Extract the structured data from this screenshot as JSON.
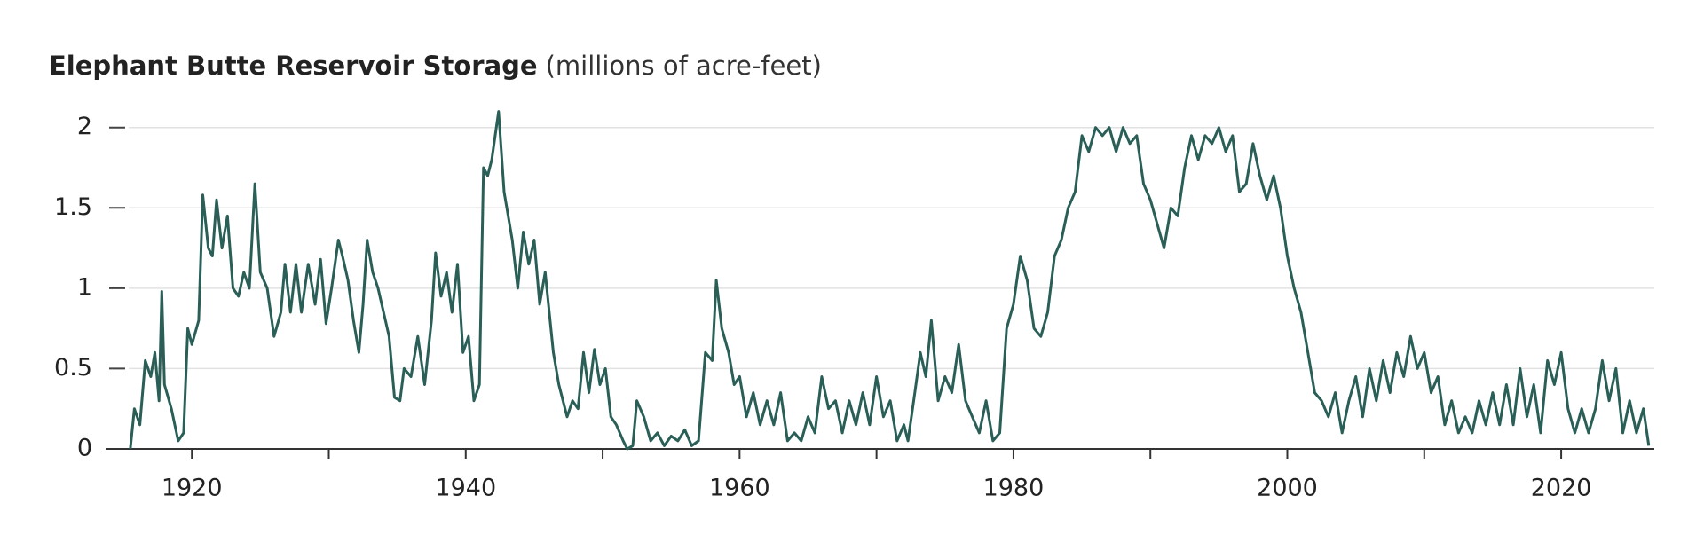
{
  "chart_data": {
    "type": "line",
    "title": "Elephant Butte Reservoir Storage",
    "subtitle": "(millions of acre-feet)",
    "xlim": [
      1913.7,
      2026.8
    ],
    "xticks": [
      1920,
      1940,
      1960,
      1980,
      2000,
      2020
    ],
    "minor_xticks": [
      1930,
      1950,
      1970,
      1990,
      2010
    ],
    "ylim": [
      0,
      2.12
    ],
    "yticks": [
      0,
      0.5,
      1,
      1.5,
      2
    ],
    "grid": true,
    "series": [
      {
        "color": "#2a5f58",
        "x": [
          1915.5,
          1915.8,
          1916.2,
          1916.6,
          1917.0,
          1917.3,
          1917.6,
          1917.8,
          1918.0,
          1918.5,
          1919.0,
          1919.4,
          1919.7,
          1920.0,
          1920.5,
          1920.8,
          1921.2,
          1921.5,
          1921.8,
          1922.2,
          1922.6,
          1923.0,
          1923.4,
          1923.8,
          1924.2,
          1924.6,
          1925.0,
          1925.5,
          1926.0,
          1926.5,
          1926.8,
          1927.2,
          1927.6,
          1928.0,
          1928.5,
          1929.0,
          1929.4,
          1929.8,
          1930.2,
          1930.7,
          1931.0,
          1931.4,
          1931.8,
          1932.2,
          1932.5,
          1932.8,
          1933.2,
          1933.6,
          1934.0,
          1934.4,
          1934.8,
          1935.2,
          1935.5,
          1936.0,
          1936.5,
          1937.0,
          1937.5,
          1937.8,
          1938.2,
          1938.6,
          1939.0,
          1939.4,
          1939.8,
          1940.2,
          1940.6,
          1941.0,
          1941.3,
          1941.6,
          1941.9,
          1942.4,
          1942.8,
          1943.4,
          1943.8,
          1944.2,
          1944.6,
          1945.0,
          1945.4,
          1945.8,
          1946.4,
          1946.8,
          1947.4,
          1947.8,
          1948.2,
          1948.6,
          1949.0,
          1949.4,
          1949.8,
          1950.2,
          1950.6,
          1951.0,
          1951.5,
          1951.8,
          1952.2,
          1952.5,
          1953.0,
          1953.5,
          1954.0,
          1954.5,
          1955.0,
          1955.5,
          1956.0,
          1956.5,
          1957.0,
          1957.5,
          1958.0,
          1958.3,
          1958.7,
          1959.2,
          1959.6,
          1960.0,
          1960.5,
          1961.0,
          1961.5,
          1962.0,
          1962.5,
          1963.0,
          1963.5,
          1964.0,
          1964.5,
          1965.0,
          1965.5,
          1966.0,
          1966.5,
          1967.0,
          1967.5,
          1968.0,
          1968.5,
          1969.0,
          1969.5,
          1970.0,
          1970.5,
          1971.0,
          1971.5,
          1972.0,
          1972.3,
          1972.8,
          1973.2,
          1973.6,
          1974.0,
          1974.5,
          1975.0,
          1975.5,
          1976.0,
          1976.5,
          1977.0,
          1977.5,
          1978.0,
          1978.5,
          1979.0,
          1979.5,
          1980.0,
          1980.5,
          1981.0,
          1981.5,
          1982.0,
          1982.5,
          1983.0,
          1983.5,
          1984.0,
          1984.5,
          1985.0,
          1985.5,
          1986.0,
          1986.5,
          1987.0,
          1987.5,
          1988.0,
          1988.5,
          1989.0,
          1989.5,
          1990.0,
          1990.5,
          1991.0,
          1991.5,
          1992.0,
          1992.5,
          1993.0,
          1993.5,
          1994.0,
          1994.5,
          1995.0,
          1995.5,
          1996.0,
          1996.5,
          1997.0,
          1997.5,
          1998.0,
          1998.5,
          1999.0,
          1999.5,
          2000.0,
          2000.5,
          2001.0,
          2001.5,
          2002.0,
          2002.5,
          2003.0,
          2003.5,
          2004.0,
          2004.5,
          2005.0,
          2005.5,
          2006.0,
          2006.5,
          2007.0,
          2007.5,
          2008.0,
          2008.5,
          2009.0,
          2009.5,
          2010.0,
          2010.5,
          2011.0,
          2011.5,
          2012.0,
          2012.5,
          2013.0,
          2013.5,
          2014.0,
          2014.5,
          2015.0,
          2015.5,
          2016.0,
          2016.5,
          2017.0,
          2017.5,
          2018.0,
          2018.5,
          2019.0,
          2019.5,
          2020.0,
          2020.5,
          2021.0,
          2021.5,
          2022.0,
          2022.5,
          2023.0,
          2023.5,
          2024.0,
          2024.5,
          2025.0,
          2025.5,
          2026.0,
          2026.4
        ],
        "values": [
          0,
          0.25,
          0.15,
          0.55,
          0.45,
          0.6,
          0.3,
          0.98,
          0.4,
          0.25,
          0.05,
          0.1,
          0.75,
          0.65,
          0.8,
          1.58,
          1.25,
          1.2,
          1.55,
          1.25,
          1.45,
          1.0,
          0.95,
          1.1,
          1.0,
          1.65,
          1.1,
          1.0,
          0.7,
          0.85,
          1.15,
          0.85,
          1.15,
          0.85,
          1.15,
          0.9,
          1.18,
          0.78,
          1.0,
          1.3,
          1.2,
          1.05,
          0.8,
          0.6,
          0.9,
          1.3,
          1.1,
          1.0,
          0.85,
          0.7,
          0.32,
          0.3,
          0.5,
          0.45,
          0.7,
          0.4,
          0.8,
          1.22,
          0.95,
          1.1,
          0.85,
          1.15,
          0.6,
          0.7,
          0.3,
          0.4,
          1.75,
          1.7,
          1.8,
          2.1,
          1.6,
          1.3,
          1.0,
          1.35,
          1.15,
          1.3,
          0.9,
          1.1,
          0.6,
          0.4,
          0.2,
          0.3,
          0.25,
          0.6,
          0.35,
          0.62,
          0.4,
          0.5,
          0.2,
          0.15,
          0.05,
          0.0,
          0.02,
          0.3,
          0.2,
          0.05,
          0.1,
          0.02,
          0.08,
          0.05,
          0.12,
          0.02,
          0.05,
          0.6,
          0.55,
          1.05,
          0.75,
          0.6,
          0.4,
          0.45,
          0.2,
          0.35,
          0.15,
          0.3,
          0.15,
          0.35,
          0.05,
          0.1,
          0.05,
          0.2,
          0.1,
          0.45,
          0.25,
          0.3,
          0.1,
          0.3,
          0.15,
          0.35,
          0.15,
          0.45,
          0.2,
          0.3,
          0.05,
          0.15,
          0.05,
          0.35,
          0.6,
          0.45,
          0.8,
          0.3,
          0.45,
          0.35,
          0.65,
          0.3,
          0.2,
          0.1,
          0.3,
          0.05,
          0.1,
          0.75,
          0.9,
          1.2,
          1.05,
          0.75,
          0.7,
          0.85,
          1.2,
          1.3,
          1.5,
          1.6,
          1.95,
          1.85,
          2.0,
          1.95,
          2.0,
          1.85,
          2.0,
          1.9,
          1.95,
          1.65,
          1.55,
          1.4,
          1.25,
          1.5,
          1.45,
          1.75,
          1.95,
          1.8,
          1.95,
          1.9,
          2.0,
          1.85,
          1.95,
          1.6,
          1.65,
          1.9,
          1.7,
          1.55,
          1.7,
          1.5,
          1.2,
          1.0,
          0.85,
          0.6,
          0.35,
          0.3,
          0.2,
          0.35,
          0.1,
          0.3,
          0.45,
          0.2,
          0.5,
          0.3,
          0.55,
          0.35,
          0.6,
          0.45,
          0.7,
          0.5,
          0.6,
          0.35,
          0.45,
          0.15,
          0.3,
          0.1,
          0.2,
          0.1,
          0.3,
          0.15,
          0.35,
          0.15,
          0.4,
          0.15,
          0.5,
          0.2,
          0.4,
          0.1,
          0.55,
          0.4,
          0.6,
          0.25,
          0.1,
          0.25,
          0.1,
          0.25,
          0.55,
          0.3,
          0.5,
          0.1,
          0.3,
          0.1,
          0.25,
          0.02
        ]
      }
    ]
  }
}
